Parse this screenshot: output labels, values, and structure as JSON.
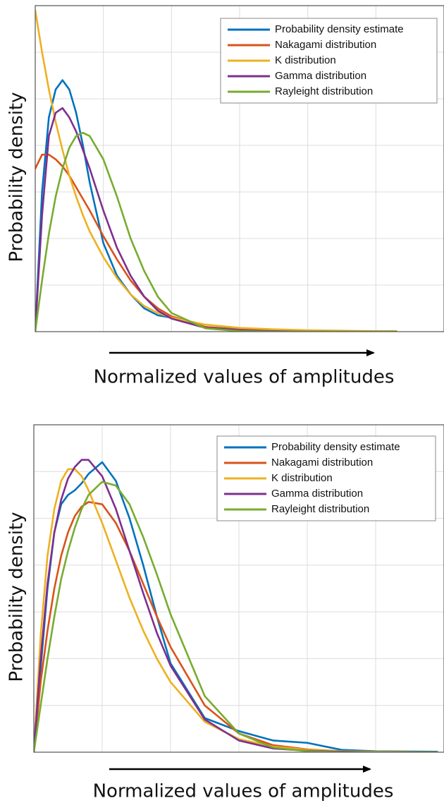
{
  "chart_data": [
    {
      "type": "line",
      "xlabel": "Normalized values of amplitudes",
      "ylabel": "Probability density",
      "x": [
        0,
        0.1,
        0.2,
        0.3,
        0.4,
        0.5,
        0.6,
        0.7,
        0.8,
        1.0,
        1.2,
        1.4,
        1.6,
        1.8,
        2.0,
        2.5,
        3.0,
        3.5,
        4.0,
        4.5,
        5.0,
        5.3
      ],
      "xlim": [
        0,
        6
      ],
      "xticks": [
        0,
        1,
        2,
        3,
        4,
        5,
        6
      ],
      "ylim": [
        0,
        7
      ],
      "yticks": [
        0,
        1,
        2,
        3,
        4,
        5,
        6,
        7
      ],
      "grid": true,
      "legend": "upper right",
      "series": [
        {
          "name": "Probability density estimate",
          "color": "#0072bd",
          "values": [
            0,
            3.0,
            4.6,
            5.2,
            5.4,
            5.2,
            4.7,
            4.0,
            3.2,
            1.9,
            1.2,
            0.8,
            0.5,
            0.35,
            0.3,
            0.1,
            0.05,
            0.03,
            0.02,
            0.01,
            0.01,
            0.01
          ]
        },
        {
          "name": "Nakagami distribution",
          "color": "#d95319",
          "values": [
            3.5,
            3.8,
            3.8,
            3.7,
            3.55,
            3.35,
            3.1,
            2.85,
            2.6,
            2.05,
            1.55,
            1.1,
            0.75,
            0.5,
            0.33,
            0.1,
            0.04,
            0.02,
            0.01,
            0.005,
            0,
            0
          ]
        },
        {
          "name": "K distribution",
          "color": "#edb120",
          "values": [
            6.9,
            6.0,
            5.2,
            4.5,
            3.9,
            3.35,
            2.9,
            2.5,
            2.15,
            1.6,
            1.15,
            0.8,
            0.55,
            0.4,
            0.3,
            0.15,
            0.08,
            0.05,
            0.03,
            0.02,
            0.01,
            0.01
          ]
        },
        {
          "name": "Gamma distribution",
          "color": "#7e2f8e",
          "values": [
            0,
            2.5,
            4.2,
            4.7,
            4.8,
            4.6,
            4.3,
            3.9,
            3.5,
            2.6,
            1.8,
            1.2,
            0.75,
            0.45,
            0.28,
            0.08,
            0.03,
            0.01,
            0,
            0,
            0,
            0
          ]
        },
        {
          "name": "Rayleight distribution",
          "color": "#77ac30",
          "values": [
            0,
            1.1,
            2.1,
            2.9,
            3.5,
            3.95,
            4.2,
            4.27,
            4.2,
            3.7,
            2.9,
            2.0,
            1.3,
            0.75,
            0.4,
            0.07,
            0.01,
            0,
            0,
            0,
            0,
            0
          ]
        }
      ]
    },
    {
      "type": "line",
      "xlabel": "Normalized values of amplitudes",
      "ylabel": "Probability density",
      "x": [
        0,
        0.1,
        0.2,
        0.3,
        0.4,
        0.5,
        0.6,
        0.7,
        0.8,
        1.0,
        1.2,
        1.4,
        1.6,
        1.8,
        2.0,
        2.5,
        3.0,
        3.5,
        4.0,
        4.5,
        5.0,
        5.9
      ],
      "xlim": [
        0,
        6
      ],
      "xticks": [
        0,
        1,
        2,
        3,
        4,
        5,
        6
      ],
      "ylim": [
        0,
        7
      ],
      "yticks": [
        0,
        1,
        2,
        3,
        4,
        5,
        6,
        7
      ],
      "grid": true,
      "legend": "upper right",
      "series": [
        {
          "name": "Probability density estimate",
          "color": "#0072bd",
          "values": [
            0,
            1.8,
            3.5,
            4.7,
            5.3,
            5.5,
            5.6,
            5.75,
            5.95,
            6.2,
            5.8,
            5.0,
            4.0,
            2.9,
            1.9,
            0.73,
            0.45,
            0.25,
            0.2,
            0.05,
            0.02,
            0.01
          ]
        },
        {
          "name": "Nakagami distribution",
          "color": "#d95319",
          "values": [
            0,
            1.5,
            2.6,
            3.5,
            4.2,
            4.7,
            5.05,
            5.25,
            5.35,
            5.3,
            4.9,
            4.3,
            3.6,
            2.9,
            2.25,
            1.0,
            0.4,
            0.15,
            0.06,
            0.02,
            0.01,
            0
          ]
        },
        {
          "name": "K distribution",
          "color": "#edb120",
          "values": [
            0,
            2.5,
            4.2,
            5.2,
            5.8,
            6.05,
            6.05,
            5.9,
            5.6,
            4.9,
            4.1,
            3.3,
            2.6,
            2.0,
            1.5,
            0.65,
            0.28,
            0.12,
            0.05,
            0.02,
            0.01,
            0
          ]
        },
        {
          "name": "Gamma distribution",
          "color": "#7e2f8e",
          "values": [
            0,
            2.0,
            3.6,
            4.7,
            5.4,
            5.85,
            6.1,
            6.25,
            6.25,
            5.9,
            5.2,
            4.3,
            3.4,
            2.55,
            1.85,
            0.7,
            0.25,
            0.08,
            0.03,
            0.01,
            0,
            0
          ]
        },
        {
          "name": "Rayleight distribution",
          "color": "#77ac30",
          "values": [
            0,
            1.0,
            2.0,
            2.9,
            3.7,
            4.3,
            4.8,
            5.2,
            5.5,
            5.78,
            5.7,
            5.3,
            4.6,
            3.8,
            2.95,
            1.2,
            0.4,
            0.1,
            0.02,
            0,
            0,
            0
          ]
        }
      ]
    }
  ]
}
